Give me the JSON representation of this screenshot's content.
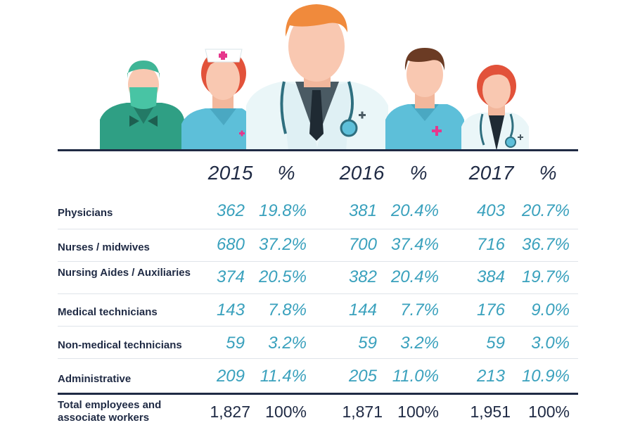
{
  "colors": {
    "header": "#1f2a44",
    "value": "#3aa1bd",
    "scrubs_green": "#2f9f84",
    "scrubs_blue": "#5dbfd9",
    "coat": "#eaf6f8",
    "skin": "#f9c8b1",
    "hair_orange": "#f08a3c",
    "hair_red": "#e2523a",
    "hair_brown": "#6b3b24",
    "cross_pink": "#e6378c"
  },
  "illustration": {
    "figures": [
      "surgeon-figure",
      "nurse-figure",
      "doctor-figure",
      "male-nurse-figure",
      "female-doctor-figure"
    ]
  },
  "table": {
    "headers": [
      "2015",
      "%",
      "2016",
      "%",
      "2017",
      "%"
    ],
    "rows": [
      {
        "label": "Physicians",
        "values": [
          "362",
          "19.8%",
          "381",
          "20.4%",
          "403",
          "20.7%"
        ]
      },
      {
        "label": "Nurses / midwives",
        "values": [
          "680",
          "37.2%",
          "700",
          "37.4%",
          "716",
          "36.7%"
        ]
      },
      {
        "label": "Nursing Aides / Auxiliaries",
        "values": [
          "374",
          "20.5%",
          "382",
          "20.4%",
          "384",
          "19.7%"
        ]
      },
      {
        "label": "Medical technicians",
        "values": [
          "143",
          "7.8%",
          "144",
          "7.7%",
          "176",
          "9.0%"
        ]
      },
      {
        "label": "Non-medical technicians",
        "values": [
          "59",
          "3.2%",
          "59",
          "3.2%",
          "59",
          "3.0%"
        ]
      },
      {
        "label": "Administrative",
        "values": [
          "209",
          "11.4%",
          "205",
          "11.0%",
          "213",
          "10.9%"
        ]
      }
    ],
    "total": {
      "label_line1": "Total employees and",
      "label_line2": "associate workers",
      "values": [
        "1,827",
        "100%",
        "1,871",
        "100%",
        "1,951",
        "100%"
      ]
    }
  }
}
